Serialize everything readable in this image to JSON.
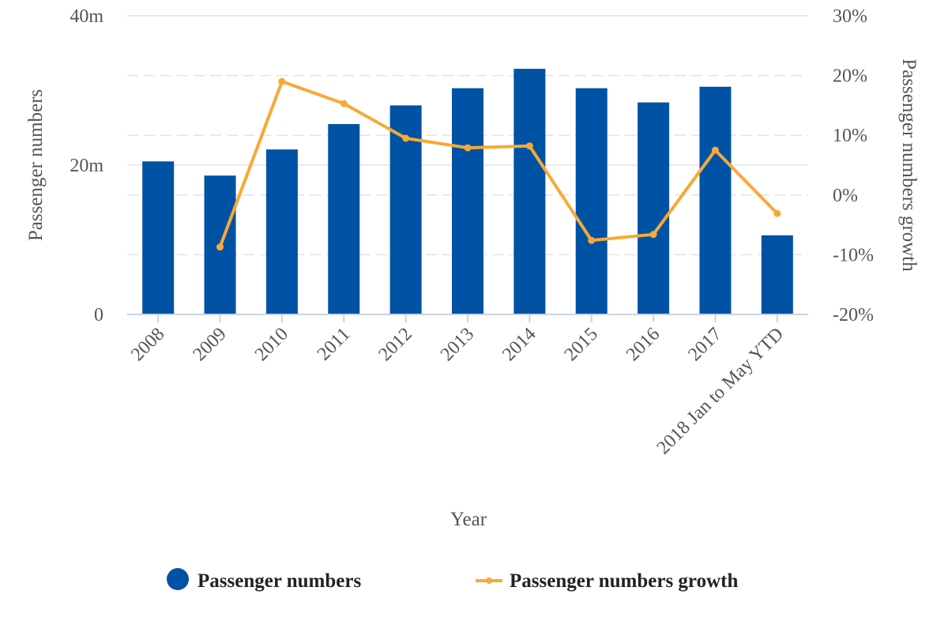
{
  "chart_data": {
    "type": "bar",
    "categories": [
      "2008",
      "2009",
      "2010",
      "2011",
      "2012",
      "2013",
      "2014",
      "2015",
      "2016",
      "2017",
      "2018 Jan to May YTD"
    ],
    "series": [
      {
        "name": "Passenger numbers",
        "type": "bar",
        "axis": "left",
        "color": "#0052a5",
        "values": [
          20.5,
          18.6,
          22.1,
          25.5,
          28.0,
          30.3,
          32.9,
          30.3,
          28.4,
          30.5,
          10.6
        ]
      },
      {
        "name": "Passenger numbers growth",
        "type": "line",
        "axis": "right",
        "color": "#f7a935",
        "values": [
          null,
          -8.7,
          19.0,
          15.3,
          9.5,
          7.9,
          8.2,
          -7.6,
          -6.6,
          7.5,
          -3.1
        ]
      }
    ],
    "xlabel": "Year",
    "ylabel_left": "Passenger numbers",
    "ylabel_right": "Passenger numbers growth",
    "yleft": {
      "ticks": [
        {
          "value": 0,
          "label": "0"
        },
        {
          "value": 20,
          "label": "20m"
        },
        {
          "value": 40,
          "label": "40m"
        }
      ],
      "range": [
        0,
        40
      ]
    },
    "yright": {
      "ticks": [
        {
          "value": -20,
          "label": "-20%"
        },
        {
          "value": -10,
          "label": "-10%"
        },
        {
          "value": 0,
          "label": "0%"
        },
        {
          "value": 10,
          "label": "10%"
        },
        {
          "value": 20,
          "label": "20%"
        },
        {
          "value": 30,
          "label": "30%"
        }
      ],
      "range": [
        -20,
        30
      ]
    },
    "grid": true,
    "legend_position": "bottom"
  }
}
